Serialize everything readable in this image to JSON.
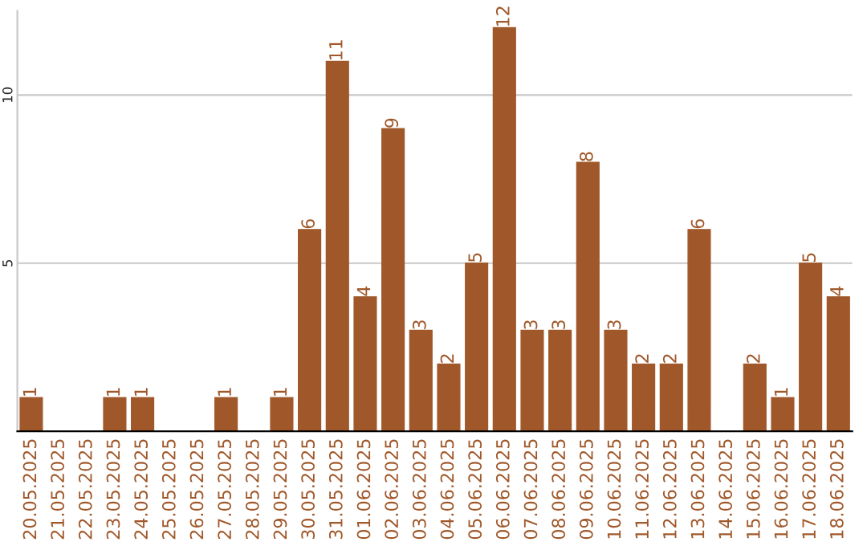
{
  "chart_data": {
    "type": "bar",
    "categories": [
      "20.05.2025",
      "21.05.2025",
      "22.05.2025",
      "23.05.2025",
      "24.05.2025",
      "25.05.2025",
      "26.05.2025",
      "27.05.2025",
      "28.05.2025",
      "29.05.2025",
      "30.05.2025",
      "31.05.2025",
      "01.06.2025",
      "02.06.2025",
      "03.06.2025",
      "04.06.2025",
      "05.06.2025",
      "06.06.2025",
      "07.06.2025",
      "08.06.2025",
      "09.06.2025",
      "10.06.2025",
      "11.06.2025",
      "12.06.2025",
      "13.06.2025",
      "14.06.2025",
      "15.06.2025",
      "16.06.2025",
      "17.06.2025",
      "18.06.2025"
    ],
    "values": [
      1,
      0,
      0,
      1,
      1,
      0,
      0,
      1,
      0,
      1,
      6,
      11,
      4,
      9,
      3,
      2,
      5,
      12,
      3,
      3,
      8,
      3,
      2,
      2,
      6,
      0,
      2,
      1,
      5,
      4
    ],
    "value_labels": [
      "1",
      null,
      null,
      "1",
      "1",
      null,
      null,
      "1",
      null,
      "1",
      "6",
      "11",
      "4",
      "9",
      "3",
      "2",
      "5",
      "12",
      "3",
      "3",
      "8",
      "3",
      "2",
      "2",
      "6",
      null,
      "2",
      "1",
      "5",
      "4"
    ],
    "color": "#a0582a",
    "ylim": [
      0,
      12.5
    ],
    "yticks": [
      5,
      10
    ],
    "grid": "y"
  }
}
